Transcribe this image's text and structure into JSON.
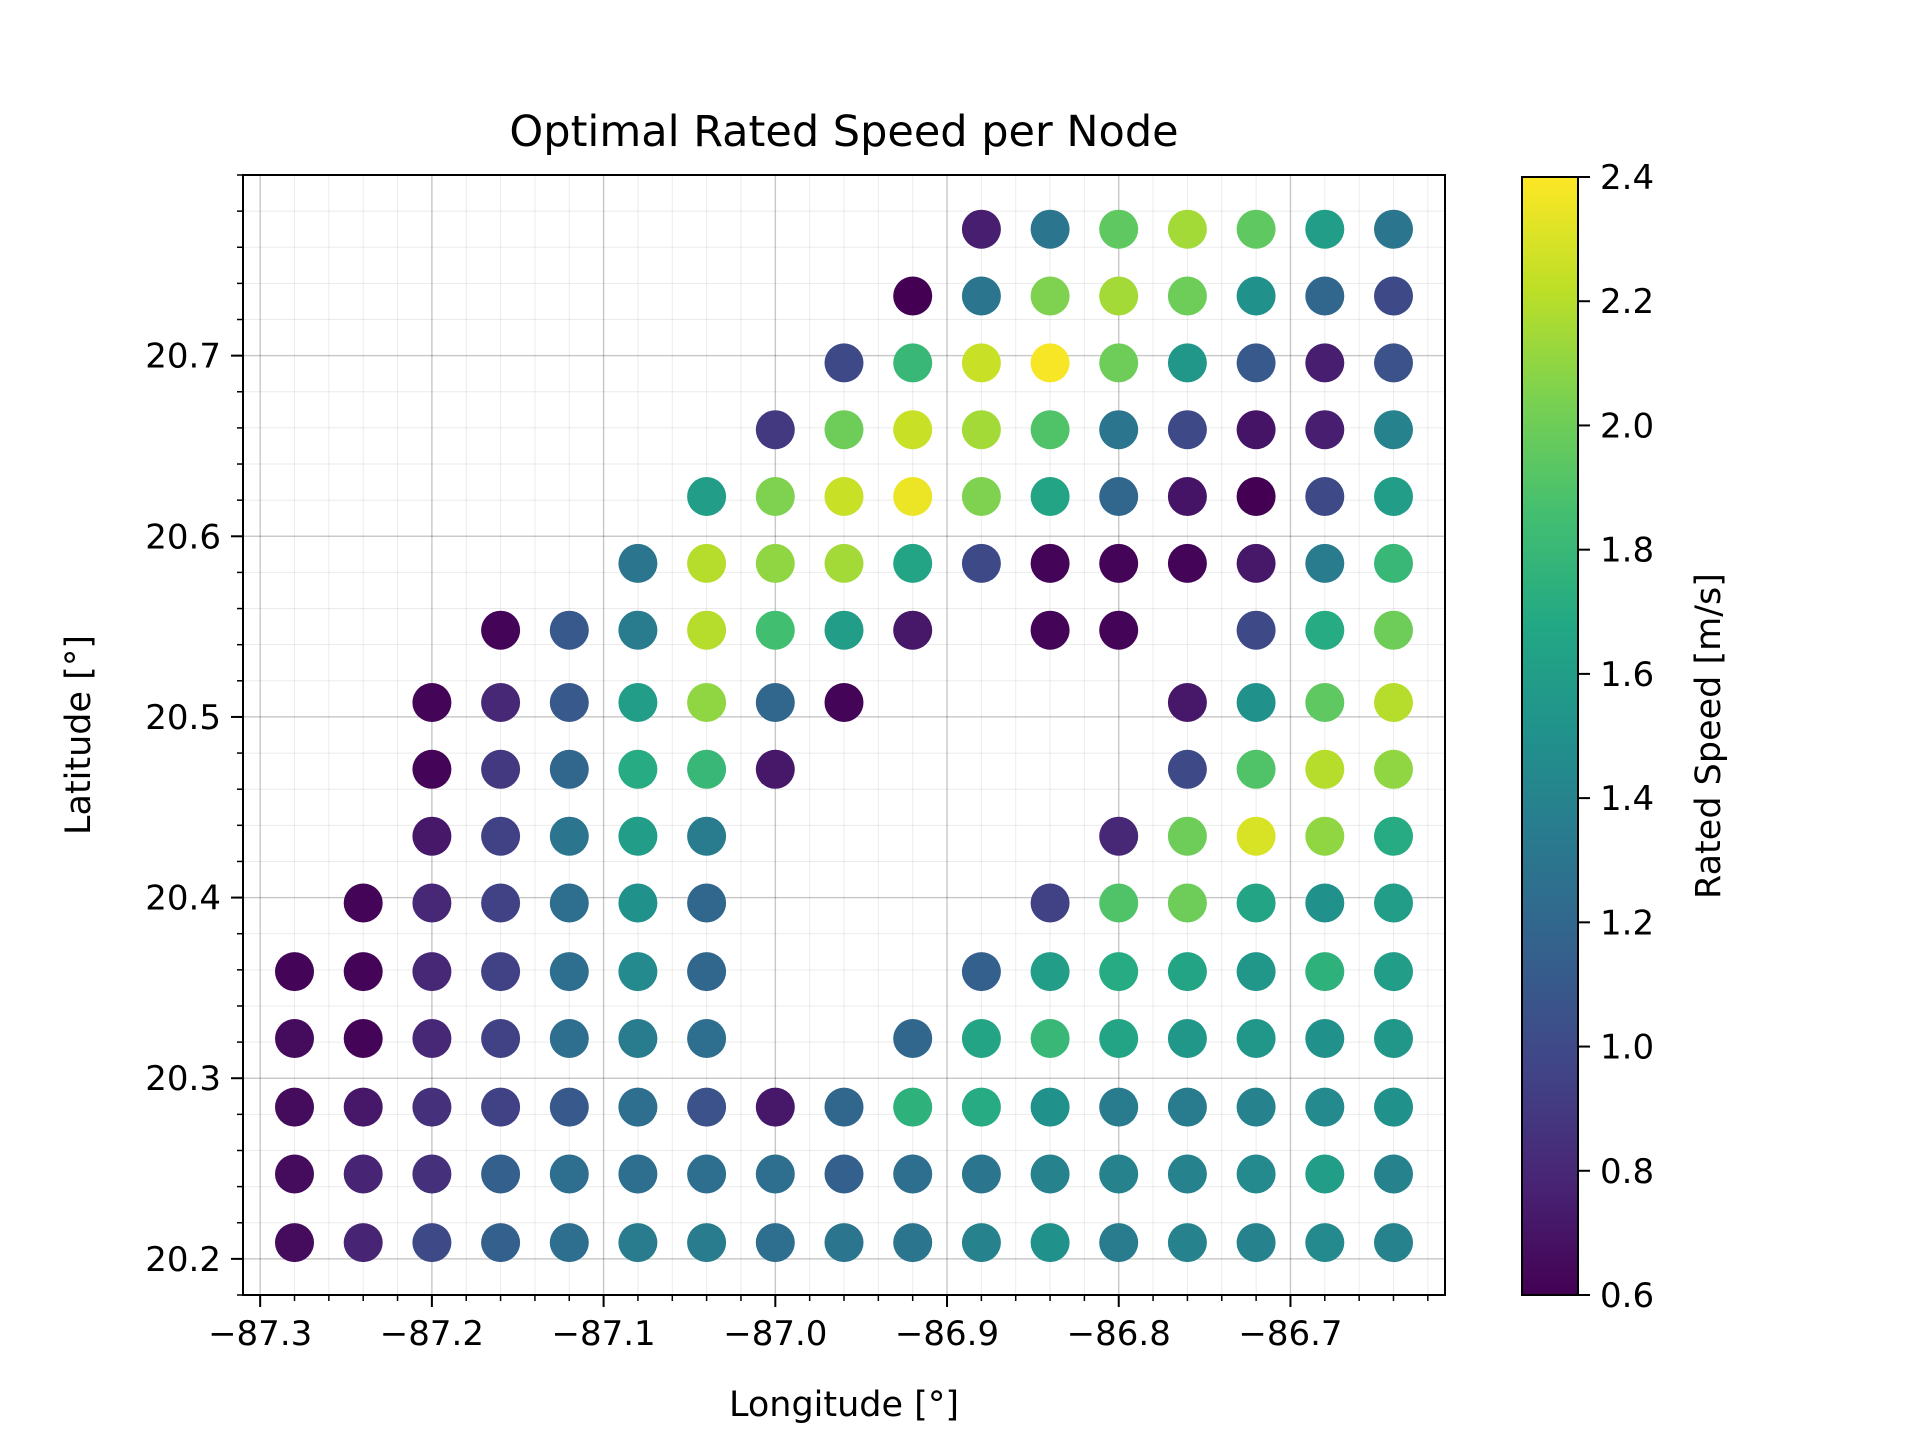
{
  "chart_data": {
    "type": "scatter",
    "title": "Optimal Rated Speed per Node",
    "xlabel": "Longitude [°]",
    "ylabel": "Latitude [°]",
    "xlim": [
      -87.31,
      -86.61
    ],
    "ylim": [
      20.18,
      20.8
    ],
    "xticks": [
      -87.3,
      -87.2,
      -87.1,
      -87.0,
      -86.9,
      -86.8,
      -86.7
    ],
    "xtick_labels": [
      "−87.3",
      "−87.2",
      "−87.1",
      "−87.0",
      "−86.9",
      "−86.8",
      "−86.7"
    ],
    "yticks": [
      20.2,
      20.3,
      20.4,
      20.5,
      20.6,
      20.7
    ],
    "ytick_labels": [
      "20.2",
      "20.3",
      "20.4",
      "20.5",
      "20.6",
      "20.7"
    ],
    "grid": true,
    "colormap": "viridis",
    "colorbar": {
      "label": "Rated Speed [m/s]",
      "min": 0.6,
      "max": 2.4,
      "ticks": [
        0.6,
        0.8,
        1.0,
        1.2,
        1.4,
        1.6,
        1.8,
        2.0,
        2.2,
        2.4
      ],
      "tick_labels": [
        "0.6",
        "0.8",
        "1.0",
        "1.2",
        "1.4",
        "1.6",
        "1.8",
        "2.0",
        "2.2",
        "2.4"
      ]
    },
    "lons": [
      -87.28,
      -87.24,
      -87.2,
      -87.16,
      -87.12,
      -87.08,
      -87.04,
      -87.0,
      -86.96,
      -86.92,
      -86.88,
      -86.84,
      -86.8,
      -86.76,
      -86.72,
      -86.68,
      -86.64
    ],
    "lats": [
      20.77,
      20.733,
      20.696,
      20.659,
      20.622,
      20.585,
      20.548,
      20.508,
      20.471,
      20.434,
      20.397,
      20.359,
      20.322,
      20.284,
      20.247,
      20.209
    ],
    "rows": [
      [
        null,
        null,
        null,
        null,
        null,
        null,
        null,
        null,
        null,
        null,
        0.75,
        1.3,
        1.95,
        2.15,
        1.95,
        1.6,
        1.3
      ],
      [
        null,
        null,
        null,
        null,
        null,
        null,
        null,
        null,
        null,
        0.6,
        1.3,
        2.05,
        2.15,
        2.0,
        1.5,
        1.2,
        1.0
      ],
      [
        null,
        null,
        null,
        null,
        null,
        null,
        null,
        null,
        1.0,
        1.8,
        2.25,
        2.38,
        2.0,
        1.55,
        1.1,
        0.75,
        1.05
      ],
      [
        null,
        null,
        null,
        null,
        null,
        null,
        null,
        0.9,
        2.0,
        2.25,
        2.15,
        1.9,
        1.3,
        1.0,
        0.7,
        0.75,
        1.4
      ],
      [
        null,
        null,
        null,
        null,
        null,
        null,
        1.6,
        2.05,
        2.25,
        2.35,
        2.05,
        1.65,
        1.2,
        0.7,
        0.6,
        1.0,
        1.6
      ],
      [
        null,
        null,
        null,
        null,
        null,
        1.3,
        2.2,
        2.1,
        2.15,
        1.65,
        1.0,
        0.62,
        0.62,
        0.62,
        0.72,
        1.35,
        1.8
      ],
      [
        null,
        null,
        null,
        0.62,
        1.1,
        1.35,
        2.2,
        1.85,
        1.6,
        0.72,
        null,
        0.62,
        0.62,
        null,
        1.0,
        1.7,
        2.0
      ],
      [
        null,
        null,
        0.62,
        0.8,
        1.1,
        1.6,
        2.1,
        1.2,
        0.62,
        null,
        null,
        null,
        null,
        0.72,
        1.5,
        1.95,
        2.2
      ],
      [
        null,
        null,
        0.62,
        0.9,
        1.2,
        1.7,
        1.8,
        0.72,
        null,
        null,
        null,
        null,
        null,
        1.0,
        1.9,
        2.2,
        2.1
      ],
      [
        null,
        null,
        0.72,
        0.95,
        1.3,
        1.6,
        1.35,
        null,
        null,
        null,
        null,
        null,
        0.8,
        2.0,
        2.3,
        2.1,
        1.7
      ],
      [
        null,
        0.62,
        0.8,
        0.95,
        1.25,
        1.5,
        1.2,
        null,
        null,
        null,
        null,
        0.95,
        1.9,
        2.0,
        1.65,
        1.5,
        1.6
      ],
      [
        0.62,
        0.62,
        0.8,
        0.95,
        1.25,
        1.45,
        1.2,
        null,
        null,
        null,
        1.15,
        1.6,
        1.7,
        1.65,
        1.55,
        1.75,
        1.6
      ],
      [
        0.65,
        0.62,
        0.8,
        0.95,
        1.25,
        1.35,
        1.25,
        null,
        null,
        1.2,
        1.65,
        1.8,
        1.65,
        1.55,
        1.55,
        1.5,
        1.55
      ],
      [
        0.65,
        0.72,
        0.85,
        0.95,
        1.1,
        1.25,
        1.05,
        0.72,
        1.2,
        1.75,
        1.7,
        1.5,
        1.35,
        1.35,
        1.4,
        1.45,
        1.5
      ],
      [
        0.65,
        0.78,
        0.85,
        1.15,
        1.25,
        1.25,
        1.25,
        1.25,
        1.15,
        1.25,
        1.3,
        1.4,
        1.4,
        1.4,
        1.45,
        1.6,
        1.4
      ],
      [
        0.65,
        0.78,
        1.0,
        1.15,
        1.25,
        1.35,
        1.35,
        1.25,
        1.3,
        1.3,
        1.4,
        1.5,
        1.35,
        1.4,
        1.4,
        1.45,
        1.4
      ]
    ]
  }
}
